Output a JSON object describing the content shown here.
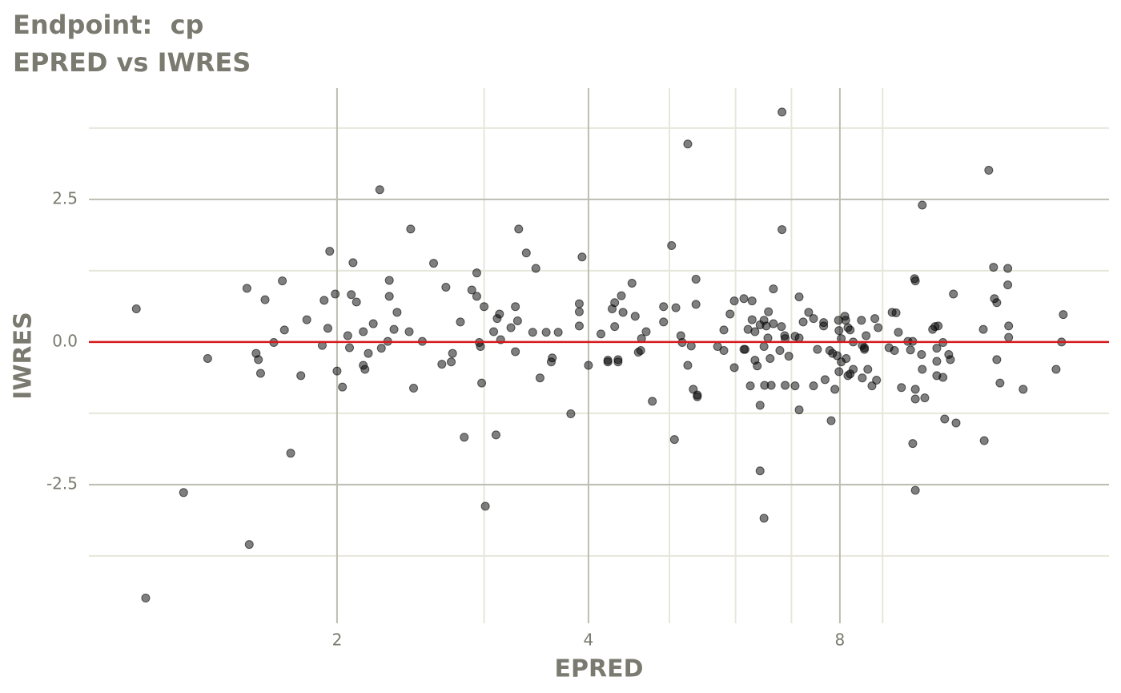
{
  "chart_data": {
    "type": "scatter",
    "title": "Endpoint:  cp",
    "subtitle": "EPRED vs IWRES",
    "x_label": "EPRED",
    "y_label": "IWRES",
    "x_log": true,
    "grid": true,
    "xlim": [
      1.009,
      16.8
    ],
    "ylim": [
      -4.89,
      4.45
    ],
    "xticks": [
      2,
      4,
      8
    ],
    "yticks": [
      -2.5,
      {
        "value": 0,
        "label": "0.0"
      },
      2.5
    ],
    "xminor": [
      3,
      5,
      6,
      7,
      9
    ],
    "yminor": [
      -3.75,
      -1.25,
      1.25,
      3.75
    ],
    "hline": {
      "value": 0,
      "color": "#d7191c"
    },
    "series": [
      {
        "color": "#000000",
        "x": [
          1.15,
          1.18,
          1.31,
          1.4,
          1.56,
          1.57,
          1.6,
          1.61,
          1.62,
          1.64,
          1.68,
          1.72,
          1.73,
          1.76,
          1.81,
          1.84,
          1.92,
          1.93,
          1.95,
          1.96,
          1.99,
          2.0,
          2.03,
          2.06,
          2.07,
          2.08,
          2.09,
          2.11,
          2.15,
          2.15,
          2.16,
          2.18,
          2.21,
          2.25,
          2.26,
          2.3,
          2.31,
          2.31,
          2.34,
          2.36,
          2.44,
          2.45,
          2.47,
          2.53,
          2.61,
          2.67,
          2.7,
          2.74,
          2.75,
          2.81,
          2.84,
          2.9,
          2.94,
          2.94,
          2.96,
          2.97,
          2.98,
          3.0,
          3.01,
          3.08,
          3.1,
          3.11,
          3.13,
          3.14,
          3.23,
          3.27,
          3.27,
          3.29,
          3.3,
          3.37,
          3.43,
          3.46,
          3.5,
          3.56,
          3.61,
          3.62,
          3.68,
          3.81,
          3.9,
          3.9,
          3.9,
          3.93,
          4.0,
          4.14,
          4.22,
          4.22,
          4.27,
          4.3,
          4.3,
          4.34,
          4.34,
          4.38,
          4.4,
          4.51,
          4.55,
          4.59,
          4.62,
          4.63,
          4.69,
          4.77,
          4.92,
          4.92,
          5.03,
          5.07,
          5.09,
          5.16,
          5.18,
          5.26,
          5.26,
          5.31,
          5.34,
          5.38,
          5.38,
          5.4,
          5.4,
          5.71,
          5.81,
          5.81,
          5.91,
          5.98,
          5.98,
          6.14,
          6.14,
          6.16,
          6.21,
          6.25,
          6.28,
          6.28,
          6.33,
          6.33,
          6.37,
          6.42,
          6.42,
          6.42,
          6.49,
          6.49,
          6.49,
          6.5,
          6.53,
          6.56,
          6.57,
          6.6,
          6.62,
          6.66,
          6.66,
          6.78,
          6.81,
          6.82,
          6.82,
          6.87,
          6.88,
          6.88,
          6.95,
          7.07,
          7.07,
          7.15,
          7.15,
          7.15,
          7.23,
          7.34,
          7.44,
          7.44,
          7.52,
          7.65,
          7.65,
          7.68,
          7.78,
          7.81,
          7.84,
          7.89,
          7.94,
          7.97,
          7.98,
          7.98,
          8.03,
          8.03,
          8.11,
          8.13,
          8.14,
          8.18,
          8.18,
          8.23,
          8.23,
          8.3,
          8.3,
          8.49,
          8.51,
          8.51,
          8.56,
          8.56,
          8.6,
          8.64,
          8.74,
          8.81,
          8.85,
          8.89,
          9.16,
          9.24,
          9.3,
          9.34,
          9.4,
          9.48,
          9.65,
          9.72,
          9.78,
          9.78,
          9.83,
          9.85,
          9.85,
          9.85,
          9.85,
          10.02,
          10.04,
          10.04,
          10.11,
          10.33,
          10.4,
          10.45,
          10.45,
          10.45,
          10.49,
          10.63,
          10.63,
          10.68,
          10.8,
          10.85,
          10.94,
          11.02,
          11.88,
          11.91,
          12.06,
          12.22,
          12.25,
          12.33,
          12.33,
          12.44,
          12.71,
          12.71,
          12.74,
          12.74,
          13.26,
          14.52,
          14.74,
          14.81
        ],
        "values": [
          0.58,
          -4.49,
          -2.64,
          -0.29,
          0.94,
          -3.55,
          -0.2,
          -0.31,
          -0.55,
          0.74,
          -0.01,
          1.07,
          0.21,
          -1.95,
          -0.59,
          0.39,
          -0.06,
          0.73,
          0.24,
          1.59,
          0.84,
          -0.51,
          -0.79,
          0.11,
          -0.1,
          0.83,
          1.39,
          0.7,
          0.18,
          -0.41,
          -0.48,
          -0.2,
          0.32,
          2.67,
          -0.11,
          0.01,
          0.8,
          1.08,
          0.22,
          0.52,
          0.18,
          1.98,
          -0.81,
          0.01,
          1.38,
          -0.39,
          0.96,
          -0.35,
          -0.2,
          0.35,
          -1.67,
          0.91,
          1.21,
          0.8,
          -0.01,
          -0.08,
          -0.72,
          0.62,
          -2.88,
          0.18,
          -1.63,
          0.41,
          0.49,
          0.04,
          0.25,
          0.62,
          -0.17,
          0.37,
          1.98,
          1.56,
          0.17,
          1.29,
          -0.63,
          0.17,
          -0.35,
          -0.28,
          0.17,
          -1.26,
          0.67,
          0.28,
          0.53,
          1.49,
          -0.41,
          0.14,
          -0.32,
          -0.35,
          0.58,
          0.69,
          0.27,
          -0.35,
          -0.31,
          0.81,
          0.52,
          1.03,
          0.45,
          -0.18,
          -0.15,
          0.06,
          0.18,
          -1.04,
          0.62,
          0.35,
          1.69,
          -1.71,
          0.6,
          0.11,
          -0.01,
          -0.41,
          3.47,
          -0.07,
          -0.83,
          1.1,
          0.66,
          -0.96,
          -0.93,
          -0.08,
          0.21,
          -0.15,
          0.49,
          0.72,
          -0.45,
          -0.13,
          0.76,
          -0.13,
          0.22,
          -0.77,
          0.39,
          0.72,
          0.18,
          -0.32,
          -0.42,
          -1.11,
          -2.26,
          0.3,
          0.38,
          -0.08,
          -3.09,
          -0.76,
          0.28,
          0.07,
          0.53,
          -0.29,
          -0.76,
          0.32,
          0.93,
          -0.15,
          0.27,
          1.97,
          4.03,
          0.11,
          -0.76,
          0.06,
          -0.25,
          0.1,
          -0.77,
          -1.19,
          0.79,
          0.07,
          0.35,
          0.52,
          -0.77,
          0.41,
          -0.13,
          0.34,
          0.28,
          -0.66,
          -0.15,
          -1.38,
          -0.2,
          -0.83,
          -0.24,
          0.38,
          0.2,
          -0.52,
          -0.35,
          0.06,
          0.45,
          0.38,
          -0.29,
          -0.59,
          0.25,
          -0.56,
          0.21,
          -0.48,
          0.0,
          0.38,
          -0.63,
          -0.06,
          -0.1,
          -0.13,
          0.11,
          -0.48,
          -0.77,
          0.41,
          -0.67,
          0.25,
          -0.1,
          0.52,
          -0.15,
          0.51,
          0.17,
          -0.8,
          0.01,
          -0.14,
          -1.78,
          0.01,
          1.11,
          -1.0,
          -2.6,
          1.07,
          -0.83,
          -0.22,
          2.4,
          -0.48,
          -0.98,
          0.22,
          0.27,
          -0.34,
          -0.59,
          -0.11,
          0.28,
          -0.01,
          -0.62,
          -1.35,
          -0.22,
          -0.31,
          0.84,
          -1.42,
          0.22,
          -1.73,
          3.01,
          1.31,
          0.76,
          0.69,
          -0.31,
          -0.72,
          1.29,
          1.0,
          0.28,
          0.08,
          -0.83,
          -0.48,
          0.0,
          0.48
        ]
      }
    ]
  }
}
